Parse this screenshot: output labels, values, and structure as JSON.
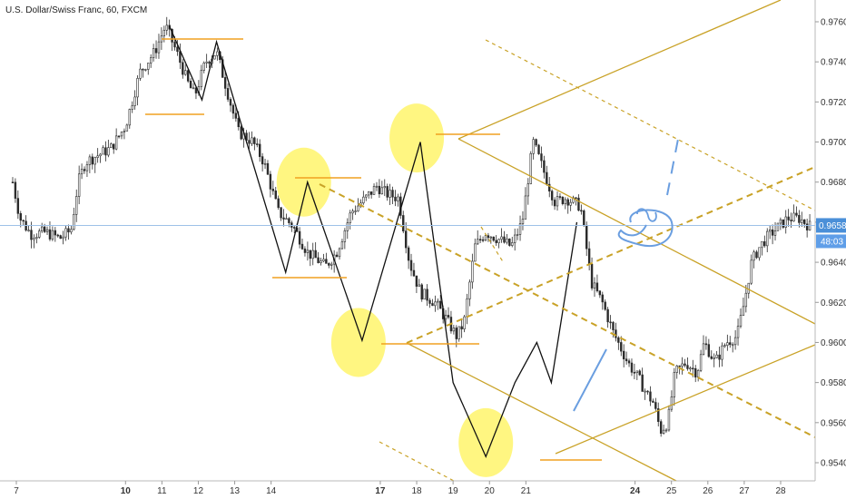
{
  "chart_data": {
    "type": "candlestick",
    "title": "U.S. Dollar/Swiss Franc, 60, FXCM",
    "xlabel": "",
    "ylabel": "",
    "grid": false,
    "x_ticks": [
      {
        "label": "7",
        "day": 7,
        "bold": false
      },
      {
        "label": "10",
        "day": 10,
        "bold": true
      },
      {
        "label": "11",
        "day": 11,
        "bold": false
      },
      {
        "label": "12",
        "day": 12,
        "bold": false
      },
      {
        "label": "13",
        "day": 13,
        "bold": false
      },
      {
        "label": "14",
        "day": 14,
        "bold": false
      },
      {
        "label": "17",
        "day": 17,
        "bold": true
      },
      {
        "label": "18",
        "day": 18,
        "bold": false
      },
      {
        "label": "19",
        "day": 19,
        "bold": false
      },
      {
        "label": "20",
        "day": 20,
        "bold": false
      },
      {
        "label": "21",
        "day": 21,
        "bold": false
      },
      {
        "label": "24",
        "day": 24,
        "bold": true
      },
      {
        "label": "25",
        "day": 25,
        "bold": false
      },
      {
        "label": "26",
        "day": 26,
        "bold": false
      },
      {
        "label": "27",
        "day": 27,
        "bold": false
      },
      {
        "label": "28",
        "day": 28,
        "bold": false
      }
    ],
    "y_ticks": [
      "0.97600",
      "0.97400",
      "0.97200",
      "0.97000",
      "0.96800",
      "0.96600",
      "0.96400",
      "0.96200",
      "0.96000",
      "0.95800",
      "0.95600",
      "0.95400"
    ],
    "ylim": [
      0.9528,
      0.9775
    ],
    "last_price": {
      "value": 0.96584,
      "label": "0.96584",
      "countdown": "48:03",
      "color": "#4a8fd8"
    },
    "price_path": [
      {
        "x": 6.9,
        "y": 0.968
      },
      {
        "x": 7.1,
        "y": 0.9662
      },
      {
        "x": 7.4,
        "y": 0.9654
      },
      {
        "x": 7.8,
        "y": 0.9655
      },
      {
        "x": 8.2,
        "y": 0.9652
      },
      {
        "x": 8.5,
        "y": 0.9656
      },
      {
        "x": 8.7,
        "y": 0.968
      },
      {
        "x": 8.9,
        "y": 0.969
      },
      {
        "x": 9.2,
        "y": 0.9693
      },
      {
        "x": 9.6,
        "y": 0.9697
      },
      {
        "x": 10.0,
        "y": 0.9708
      },
      {
        "x": 10.4,
        "y": 0.9735
      },
      {
        "x": 10.8,
        "y": 0.9745
      },
      {
        "x": 11.1,
        "y": 0.9758
      },
      {
        "x": 11.4,
        "y": 0.9745
      },
      {
        "x": 11.7,
        "y": 0.973
      },
      {
        "x": 11.9,
        "y": 0.9723
      },
      {
        "x": 12.2,
        "y": 0.974
      },
      {
        "x": 12.5,
        "y": 0.9745
      },
      {
        "x": 12.8,
        "y": 0.9725
      },
      {
        "x": 13.1,
        "y": 0.9705
      },
      {
        "x": 13.5,
        "y": 0.97
      },
      {
        "x": 13.8,
        "y": 0.969
      },
      {
        "x": 14.2,
        "y": 0.9665
      },
      {
        "x": 14.6,
        "y": 0.9658
      },
      {
        "x": 15.0,
        "y": 0.9645
      },
      {
        "x": 15.5,
        "y": 0.9638
      },
      {
        "x": 15.8,
        "y": 0.9645
      },
      {
        "x": 16.2,
        "y": 0.9665
      },
      {
        "x": 16.6,
        "y": 0.9672
      },
      {
        "x": 16.9,
        "y": 0.9678
      },
      {
        "x": 17.2,
        "y": 0.9674
      },
      {
        "x": 17.5,
        "y": 0.9672
      },
      {
        "x": 17.8,
        "y": 0.964
      },
      {
        "x": 18.1,
        "y": 0.9625
      },
      {
        "x": 18.5,
        "y": 0.962
      },
      {
        "x": 18.8,
        "y": 0.9612
      },
      {
        "x": 19.1,
        "y": 0.9603
      },
      {
        "x": 19.3,
        "y": 0.961
      },
      {
        "x": 19.6,
        "y": 0.9648
      },
      {
        "x": 19.9,
        "y": 0.9655
      },
      {
        "x": 20.2,
        "y": 0.9652
      },
      {
        "x": 20.6,
        "y": 0.9648
      },
      {
        "x": 20.9,
        "y": 0.966
      },
      {
        "x": 21.2,
        "y": 0.97
      },
      {
        "x": 21.5,
        "y": 0.9685
      },
      {
        "x": 21.8,
        "y": 0.967
      },
      {
        "x": 22.1,
        "y": 0.9672
      },
      {
        "x": 22.5,
        "y": 0.9668
      },
      {
        "x": 22.8,
        "y": 0.963
      },
      {
        "x": 23.1,
        "y": 0.962
      },
      {
        "x": 23.4,
        "y": 0.9605
      },
      {
        "x": 23.8,
        "y": 0.959
      },
      {
        "x": 24.1,
        "y": 0.9582
      },
      {
        "x": 24.3,
        "y": 0.9575
      },
      {
        "x": 24.5,
        "y": 0.957
      },
      {
        "x": 24.7,
        "y": 0.9556
      },
      {
        "x": 24.9,
        "y": 0.956
      },
      {
        "x": 25.1,
        "y": 0.9585
      },
      {
        "x": 25.4,
        "y": 0.959
      },
      {
        "x": 25.7,
        "y": 0.9585
      },
      {
        "x": 25.9,
        "y": 0.96
      },
      {
        "x": 26.2,
        "y": 0.959
      },
      {
        "x": 26.5,
        "y": 0.96
      },
      {
        "x": 26.8,
        "y": 0.9603
      },
      {
        "x": 27.0,
        "y": 0.962
      },
      {
        "x": 27.2,
        "y": 0.964
      },
      {
        "x": 27.4,
        "y": 0.9647
      },
      {
        "x": 27.6,
        "y": 0.9652
      },
      {
        "x": 27.9,
        "y": 0.9657
      },
      {
        "x": 28.2,
        "y": 0.9662
      },
      {
        "x": 28.5,
        "y": 0.9662
      },
      {
        "x": 28.8,
        "y": 0.9658
      }
    ],
    "zigzag": [
      {
        "x": 11.2,
        "y": 0.9758
      },
      {
        "x": 12.1,
        "y": 0.9721
      },
      {
        "x": 12.5,
        "y": 0.975
      },
      {
        "x": 14.4,
        "y": 0.9635
      },
      {
        "x": 15.0,
        "y": 0.968
      },
      {
        "x": 16.5,
        "y": 0.9601
      },
      {
        "x": 18.1,
        "y": 0.97
      },
      {
        "x": 19.0,
        "y": 0.958
      },
      {
        "x": 19.9,
        "y": 0.9543
      },
      {
        "x": 20.7,
        "y": 0.958
      },
      {
        "x": 21.3,
        "y": 0.96
      },
      {
        "x": 21.7,
        "y": 0.958
      },
      {
        "x": 22.4,
        "y": 0.966
      }
    ],
    "highlight_circles": [
      {
        "x": 14.9,
        "y": 0.968
      },
      {
        "x": 16.4,
        "y": 0.96
      },
      {
        "x": 18.0,
        "y": 0.9702
      },
      {
        "x": 19.9,
        "y": 0.955
      }
    ],
    "colors": {
      "candle": "#2b2b2b",
      "zigzag": "#111111",
      "channel": "#c9a227",
      "level": "#f0a020",
      "highlight": "#fff46b",
      "sketch": "#6a9ee0",
      "price_line": "#9ec1e8"
    }
  }
}
